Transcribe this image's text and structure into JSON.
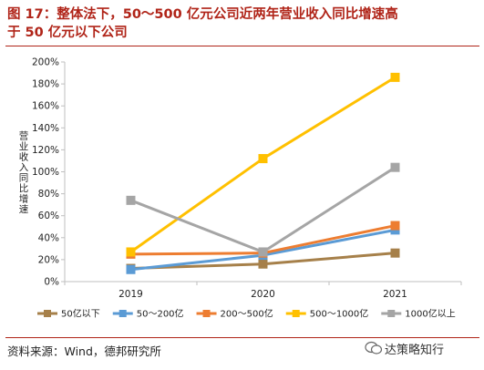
{
  "header": {
    "title_line1": "图 17：整体法下，50～500 亿元公司近两年营业收入同比增速高",
    "title_line2": "于 50 亿元以下公司"
  },
  "footer": {
    "source": "资料来源：Wind，德邦研究所",
    "watermark": "达策略知行"
  },
  "icons": {
    "watermark": "wechat-icon"
  },
  "chart_data": {
    "type": "line",
    "title": "",
    "xlabel": "",
    "ylabel": "营业收入同比增速",
    "categories": [
      "2019",
      "2020",
      "2021"
    ],
    "ylim": [
      0,
      200
    ],
    "yticks": [
      0,
      20,
      40,
      60,
      80,
      100,
      120,
      140,
      160,
      180,
      200
    ],
    "ytick_labels": [
      "0%",
      "20%",
      "40%",
      "60%",
      "80%",
      "100%",
      "120%",
      "140%",
      "160%",
      "180%",
      "200%"
    ],
    "grid": false,
    "legend_position": "bottom",
    "series": [
      {
        "name": "50亿以下",
        "color": "#a6804a",
        "values": [
          12,
          16,
          26
        ]
      },
      {
        "name": "50～200亿",
        "color": "#5b9bd5",
        "values": [
          11,
          24,
          47
        ]
      },
      {
        "name": "200～500亿",
        "color": "#ed7d31",
        "values": [
          25,
          26,
          51
        ]
      },
      {
        "name": "500～1000亿",
        "color": "#ffc000",
        "values": [
          27,
          112,
          186
        ]
      },
      {
        "name": "1000亿以上",
        "color": "#a5a5a5",
        "values": [
          74,
          27,
          104
        ]
      }
    ]
  }
}
